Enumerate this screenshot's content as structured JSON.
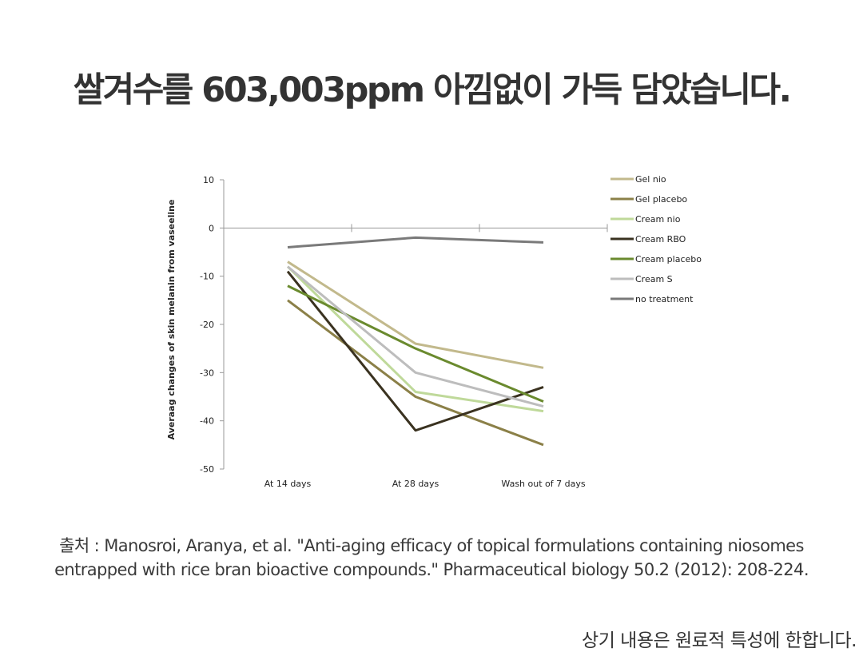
{
  "headline": "쌀겨수를 603,003ppm 아낌없이 가득 담았습니다.",
  "citation": {
    "line1": "출처 : Manosroi, Aranya, et al. \"Anti-aging efficacy of topical formulations containing niosomes",
    "line2": "entrapped with rice bran bioactive compounds.\" Pharmaceutical biology 50.2 (2012): 208-224."
  },
  "footnote": "상기 내용은 원료적 특성에 한합니다.",
  "chart_data": {
    "type": "line",
    "ylabel": "Averaag changes of  skin melanin from vaseeline",
    "categories": [
      "At 14 days",
      "At 28 days",
      "Wash out of 7 days"
    ],
    "ylim": [
      -50,
      10
    ],
    "yticks": [
      10,
      0,
      -10,
      -20,
      -30,
      -40,
      -50
    ],
    "legend_position": "right",
    "series": [
      {
        "name": "Gel nio",
        "color": "#c2b98c",
        "values": [
          -7,
          -24,
          -29
        ]
      },
      {
        "name": "Gel placebo",
        "color": "#8b8048",
        "values": [
          -15,
          -35,
          -45
        ]
      },
      {
        "name": "Cream nio",
        "color": "#bfd99a",
        "values": [
          -8,
          -34,
          -38
        ]
      },
      {
        "name": "Cream RBO",
        "color": "#3a3220",
        "values": [
          -9,
          -42,
          -33
        ]
      },
      {
        "name": "Cream placebo",
        "color": "#6a8a2e",
        "values": [
          -12,
          -25,
          -36
        ]
      },
      {
        "name": "Cream S",
        "color": "#bdbdbd",
        "values": [
          -8,
          -30,
          -37
        ]
      },
      {
        "name": "no treatment",
        "color": "#7a7a7a",
        "values": [
          -4,
          -2,
          -3
        ]
      }
    ]
  }
}
